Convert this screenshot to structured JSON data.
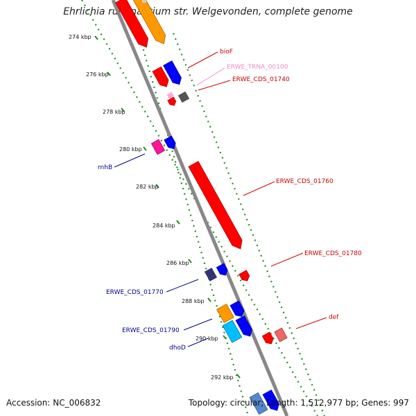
{
  "title": "Ehrlichia ruminantium str. Welgevonden, complete genome",
  "accession_text": "Accession: NC_006832",
  "topology_text": "Topology: circular; Length: 1,512,977 bp; Genes: 997",
  "ticks": [
    "274 kbp",
    "276 kbp",
    "278 kbp",
    "280 kbp",
    "282 kbp",
    "284 kbp",
    "286 kbp",
    "288 kbp",
    "290 kbp",
    "292 kbp"
  ],
  "labels": {
    "bioF": "bioF",
    "trna00100": "ERWE_TRNA_00100",
    "cds01740": "ERWE_CDS_01740",
    "rnhB": "rnhB",
    "cds01760": "ERWE_CDS_01760",
    "cds01780": "ERWE_CDS_01780",
    "cds01770": "ERWE_CDS_01770",
    "def": "def",
    "cds01790": "ERWE_CDS_01790",
    "dhoD": "dhoD"
  },
  "colors": {
    "backbone": "#888888",
    "tick_green": "#228B22",
    "red_label": "#cc0000",
    "blue_label": "#00008b",
    "pink_label": "#ee88cc",
    "red_gene": "#ff0000",
    "orange_gene": "#ff9900",
    "blue_gene": "#0000ff",
    "gray_gene": "#555555",
    "magenta_gene": "#ff1493",
    "navy_gene": "#333377",
    "cyan_gene": "#00bfff",
    "salmon_gene": "#ee6666",
    "steel_gene": "#5588cc"
  }
}
